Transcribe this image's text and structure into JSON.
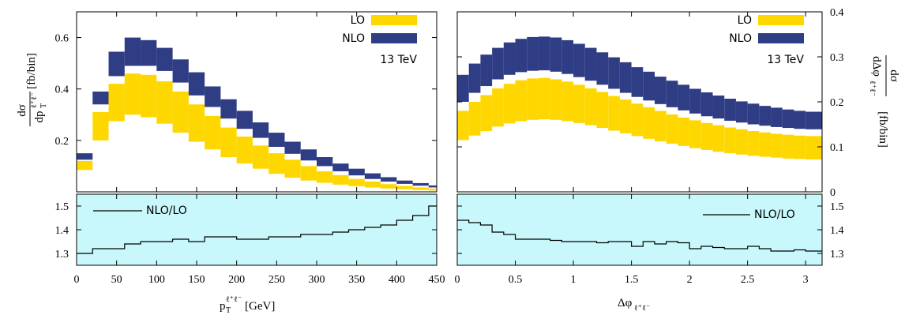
{
  "colors": {
    "lo": "#ffd700",
    "nlo": "#2f3d85",
    "ratio_bg": "#c8f8fb",
    "line": "#000000"
  },
  "chart_data": [
    {
      "type": "area",
      "name": "pT",
      "energy_label": "13 TeV",
      "legend": [
        "LO",
        "NLO"
      ],
      "bins": [
        0,
        20,
        40,
        60,
        80,
        100,
        120,
        140,
        160,
        180,
        200,
        220,
        240,
        260,
        280,
        300,
        320,
        340,
        360,
        380,
        400,
        420,
        440,
        450
      ],
      "lo_low": [
        0.085,
        0.2,
        0.275,
        0.3,
        0.29,
        0.265,
        0.23,
        0.195,
        0.165,
        0.135,
        0.11,
        0.09,
        0.07,
        0.055,
        0.044,
        0.035,
        0.028,
        0.022,
        0.017,
        0.013,
        0.01,
        0.007,
        0.005
      ],
      "lo_high": [
        0.12,
        0.31,
        0.42,
        0.46,
        0.455,
        0.43,
        0.39,
        0.34,
        0.295,
        0.25,
        0.215,
        0.18,
        0.15,
        0.125,
        0.1,
        0.08,
        0.065,
        0.05,
        0.04,
        0.03,
        0.023,
        0.017,
        0.012
      ],
      "nlo_low": [
        0.125,
        0.34,
        0.45,
        0.49,
        0.49,
        0.47,
        0.425,
        0.375,
        0.33,
        0.285,
        0.245,
        0.21,
        0.175,
        0.148,
        0.122,
        0.1,
        0.08,
        0.064,
        0.05,
        0.04,
        0.031,
        0.024,
        0.017
      ],
      "nlo_high": [
        0.15,
        0.39,
        0.545,
        0.6,
        0.59,
        0.56,
        0.515,
        0.465,
        0.41,
        0.36,
        0.315,
        0.27,
        0.23,
        0.195,
        0.165,
        0.135,
        0.11,
        0.09,
        0.072,
        0.057,
        0.044,
        0.034,
        0.025
      ],
      "ratio": [
        1.3,
        1.32,
        1.32,
        1.34,
        1.35,
        1.35,
        1.36,
        1.35,
        1.37,
        1.37,
        1.36,
        1.36,
        1.37,
        1.37,
        1.38,
        1.38,
        1.39,
        1.4,
        1.41,
        1.42,
        1.44,
        1.46,
        1.5
      ],
      "xlim": [
        0,
        450
      ],
      "ylim": [
        0,
        0.7
      ],
      "ratio_ylim": [
        1.25,
        1.55
      ],
      "xticks": [
        "0",
        "50",
        "100",
        "150",
        "200",
        "250",
        "300",
        "350",
        "400",
        "450"
      ],
      "xtick_values": [
        0,
        50,
        100,
        150,
        200,
        250,
        300,
        350,
        400,
        450
      ],
      "yticks": [
        "0.2",
        "0.4",
        "0.6"
      ],
      "ytick_values": [
        0.2,
        0.4,
        0.6
      ],
      "ratio_yticks": [
        "1.3",
        "1.4",
        "1.5"
      ],
      "ratio_ytick_values": [
        1.3,
        1.4,
        1.5
      ],
      "ratio_label": "NLO/LO",
      "xlabel": {
        "var": "p",
        "sub": "T",
        "sup": "ℓ⁺ℓ⁻",
        "unit": "[GeV]"
      },
      "ylabel": {
        "num": "dσ",
        "den": "dp",
        "den_sub": "T",
        "den_sup": "ℓ⁺ℓ⁻",
        "unit": "[fb/bin]"
      }
    },
    {
      "type": "area",
      "name": "dphi",
      "energy_label": "13 TeV",
      "legend": [
        "LO",
        "NLO"
      ],
      "bins": [
        0,
        0.1,
        0.2,
        0.3,
        0.4,
        0.5,
        0.6,
        0.7,
        0.8,
        0.9,
        1.0,
        1.1,
        1.2,
        1.3,
        1.4,
        1.5,
        1.6,
        1.7,
        1.8,
        1.9,
        2.0,
        2.1,
        2.2,
        2.3,
        2.4,
        2.5,
        2.6,
        2.7,
        2.8,
        2.9,
        3.0,
        3.1416
      ],
      "lo_low": [
        0.115,
        0.125,
        0.135,
        0.145,
        0.152,
        0.157,
        0.16,
        0.161,
        0.16,
        0.157,
        0.153,
        0.148,
        0.142,
        0.136,
        0.13,
        0.124,
        0.118,
        0.112,
        0.107,
        0.102,
        0.097,
        0.093,
        0.089,
        0.086,
        0.083,
        0.08,
        0.078,
        0.076,
        0.074,
        0.073,
        0.072
      ],
      "lo_high": [
        0.18,
        0.2,
        0.215,
        0.23,
        0.24,
        0.248,
        0.252,
        0.253,
        0.25,
        0.245,
        0.238,
        0.23,
        0.222,
        0.213,
        0.205,
        0.196,
        0.188,
        0.18,
        0.172,
        0.165,
        0.159,
        0.153,
        0.148,
        0.143,
        0.139,
        0.135,
        0.132,
        0.129,
        0.127,
        0.125,
        0.124
      ],
      "nlo_low": [
        0.2,
        0.22,
        0.235,
        0.25,
        0.26,
        0.266,
        0.269,
        0.27,
        0.267,
        0.262,
        0.255,
        0.247,
        0.238,
        0.229,
        0.22,
        0.211,
        0.203,
        0.195,
        0.188,
        0.181,
        0.174,
        0.168,
        0.163,
        0.158,
        0.154,
        0.15,
        0.147,
        0.144,
        0.142,
        0.14,
        0.139
      ],
      "nlo_high": [
        0.26,
        0.285,
        0.305,
        0.32,
        0.332,
        0.34,
        0.344,
        0.345,
        0.343,
        0.337,
        0.329,
        0.32,
        0.31,
        0.299,
        0.288,
        0.277,
        0.267,
        0.256,
        0.247,
        0.238,
        0.229,
        0.221,
        0.214,
        0.207,
        0.201,
        0.196,
        0.191,
        0.187,
        0.183,
        0.18,
        0.178
      ],
      "ratio": [
        1.44,
        1.43,
        1.42,
        1.39,
        1.38,
        1.36,
        1.36,
        1.36,
        1.355,
        1.35,
        1.35,
        1.35,
        1.345,
        1.35,
        1.35,
        1.33,
        1.35,
        1.34,
        1.35,
        1.345,
        1.32,
        1.33,
        1.325,
        1.32,
        1.32,
        1.33,
        1.32,
        1.31,
        1.31,
        1.315,
        1.31
      ],
      "xlim": [
        0,
        3.1416
      ],
      "ylim": [
        0,
        0.4
      ],
      "ratio_ylim": [
        1.25,
        1.55
      ],
      "xticks": [
        "0",
        "0.5",
        "1",
        "1.5",
        "2",
        "2.5",
        "3"
      ],
      "xtick_values": [
        0,
        0.5,
        1,
        1.5,
        2,
        2.5,
        3
      ],
      "yticks": [
        "0",
        "0.1",
        "0.2",
        "0.3",
        "0.4"
      ],
      "ytick_values": [
        0,
        0.1,
        0.2,
        0.3,
        0.4
      ],
      "ratio_yticks": [
        "1.3",
        "1.4",
        "1.5"
      ],
      "ratio_ytick_values": [
        1.3,
        1.4,
        1.5
      ],
      "ratio_label": "NLO/LO",
      "xlabel": {
        "var": "Δφ",
        "sub": "ℓ⁺ℓ⁻",
        "unit": ""
      },
      "ylabel": {
        "num": "dσ",
        "den": "dΔφ",
        "den_sub": "ℓ⁺ℓ⁻",
        "unit": "[fb/bin]"
      }
    }
  ]
}
